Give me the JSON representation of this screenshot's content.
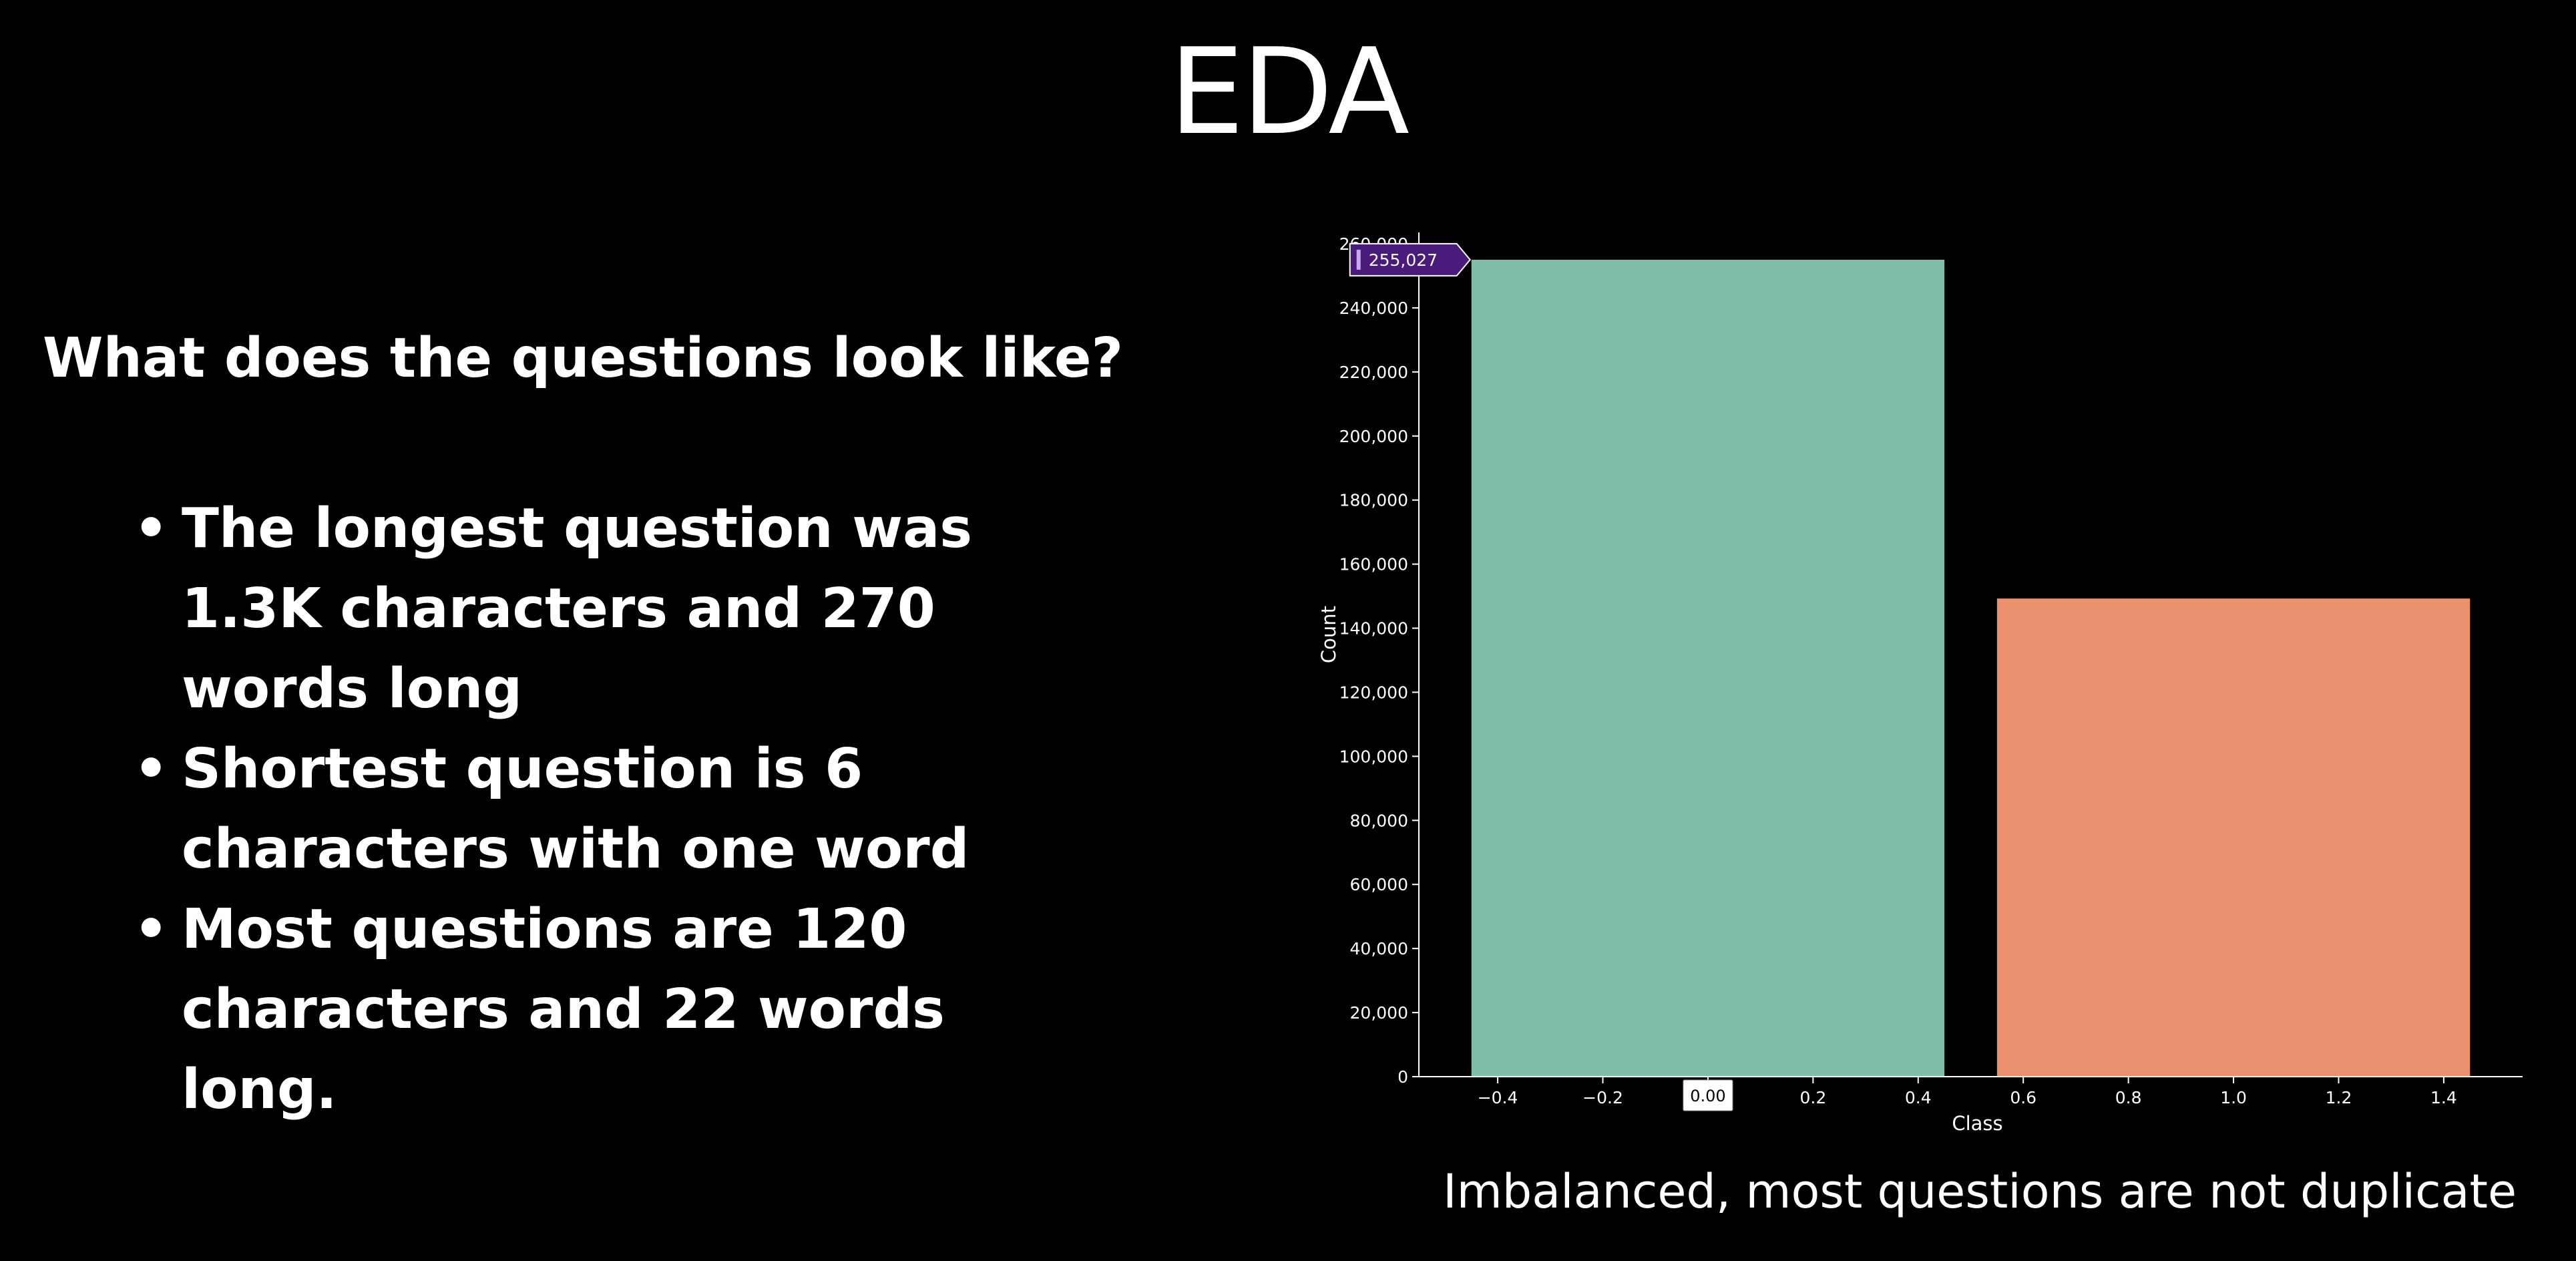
{
  "slide": {
    "title": "EDA",
    "subtitle": "What does the questions look like?",
    "bullet_marker": "•",
    "bullets": [
      "The longest question was\n1.3K characters and 270\nwords long",
      "Shortest question is 6\ncharacters with one word",
      "Most questions are 120\ncharacters and 22 words long."
    ],
    "caption": "Imbalanced, most questions are not duplicate"
  },
  "chart_data": {
    "type": "bar",
    "categories": [
      0,
      1
    ],
    "values": [
      255027,
      149263
    ],
    "colors": [
      "#7fbfa8",
      "#ec9170"
    ],
    "bar_width": 0.9,
    "xlabel": "Class",
    "ylabel": "Count",
    "xlim": [
      -0.55,
      1.55
    ],
    "ylim": [
      0,
      260000
    ],
    "xticks": [
      -0.4,
      -0.2,
      0.0,
      0.2,
      0.4,
      0.6,
      0.8,
      1.0,
      1.2,
      1.4
    ],
    "xtick_labels": [
      "−0.4",
      "−0.2",
      "",
      "0.2",
      "0.4",
      "0.6",
      "0.8",
      "1.0",
      "1.2",
      "1.4"
    ],
    "yticks": [
      0,
      20000,
      40000,
      60000,
      80000,
      100000,
      120000,
      140000,
      160000,
      180000,
      200000,
      220000,
      240000,
      260000
    ],
    "ytick_labels": [
      "0",
      "20,000",
      "40,000",
      "60,000",
      "80,000",
      "100,000",
      "120,000",
      "140,000",
      "160,000",
      "180,000",
      "200,000",
      "220,000",
      "240,000",
      "260,000"
    ],
    "grid": false,
    "tooltip": {
      "label": "255,027",
      "value": 255027,
      "color": "#4a1b7a",
      "accent": "#c8a8f0"
    },
    "hover_x": {
      "label": "0.00",
      "value": 0.0
    }
  }
}
